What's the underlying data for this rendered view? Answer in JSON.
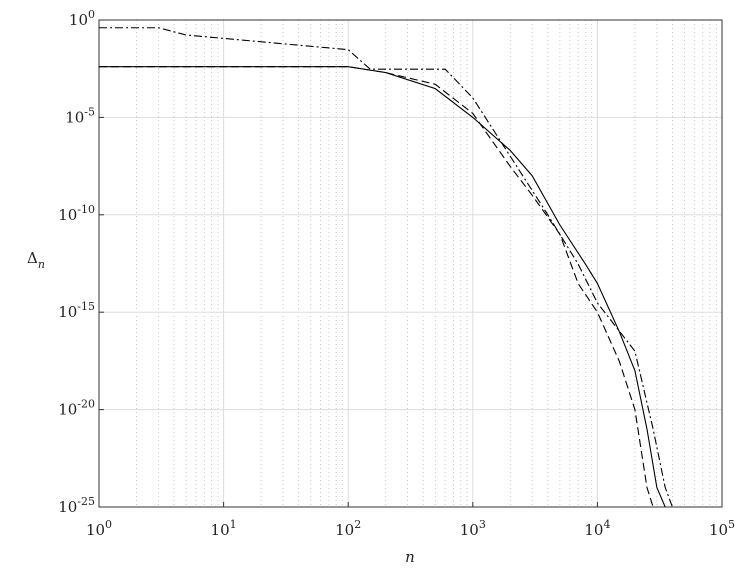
{
  "chart_data": {
    "type": "line",
    "x_label": "n",
    "y_label": "Δn",
    "xlog": true,
    "ylog": true,
    "grid": true,
    "minor_grid": true,
    "xlim": [
      1,
      100000
    ],
    "ylim": [
      1e-25,
      1
    ],
    "xticks": [
      {
        "value": 1,
        "label": "10^0"
      },
      {
        "value": 10,
        "label": "10^1"
      },
      {
        "value": 100,
        "label": "10^2"
      },
      {
        "value": 1000,
        "label": "10^3"
      },
      {
        "value": 10000,
        "label": "10^4"
      },
      {
        "value": 100000,
        "label": "10^5"
      }
    ],
    "yticks": [
      {
        "value": 1e-25,
        "label": "10^-25"
      },
      {
        "value": 1e-20,
        "label": "10^-20"
      },
      {
        "value": 1e-15,
        "label": "10^-15"
      },
      {
        "value": 1e-10,
        "label": "10^-10"
      },
      {
        "value": 1e-05,
        "label": "10^-5"
      },
      {
        "value": 1,
        "label": "10^0"
      }
    ],
    "series": [
      {
        "color": "#000000",
        "dash": "solid",
        "x": [
          1,
          100,
          200,
          500,
          1000,
          2000,
          3000,
          5000,
          8000,
          10000,
          15000,
          20000,
          25000,
          30000,
          35000
        ],
        "values": [
          0.004,
          0.004,
          0.002,
          0.0003,
          1e-05,
          2e-07,
          1e-08,
          3e-11,
          3e-13,
          3e-14,
          1e-16,
          1e-18,
          1e-21,
          1e-24,
          1e-25
        ]
      },
      {
        "color": "#000000",
        "dash": "dashed",
        "x": [
          1,
          100,
          200,
          500,
          1000,
          2000,
          3000,
          5000,
          7000,
          10000,
          15000,
          20000,
          25000,
          28000
        ],
        "values": [
          0.004,
          0.004,
          0.002,
          0.0005,
          1.6e-05,
          3e-08,
          1e-09,
          1e-11,
          3e-14,
          1e-15,
          3e-18,
          1e-20,
          1e-24,
          1e-25
        ]
      },
      {
        "color": "#000000",
        "dash": "dashdot",
        "x": [
          1,
          3,
          5,
          100,
          150,
          600,
          1000,
          2000,
          4000,
          7000,
          10000,
          20000,
          28000,
          35000,
          40000
        ],
        "values": [
          0.4,
          0.4,
          0.17,
          0.03,
          0.003,
          0.003,
          0.0001,
          1e-07,
          1e-10,
          3e-13,
          3e-15,
          1e-17,
          1e-21,
          1e-24,
          1e-25
        ]
      }
    ]
  }
}
